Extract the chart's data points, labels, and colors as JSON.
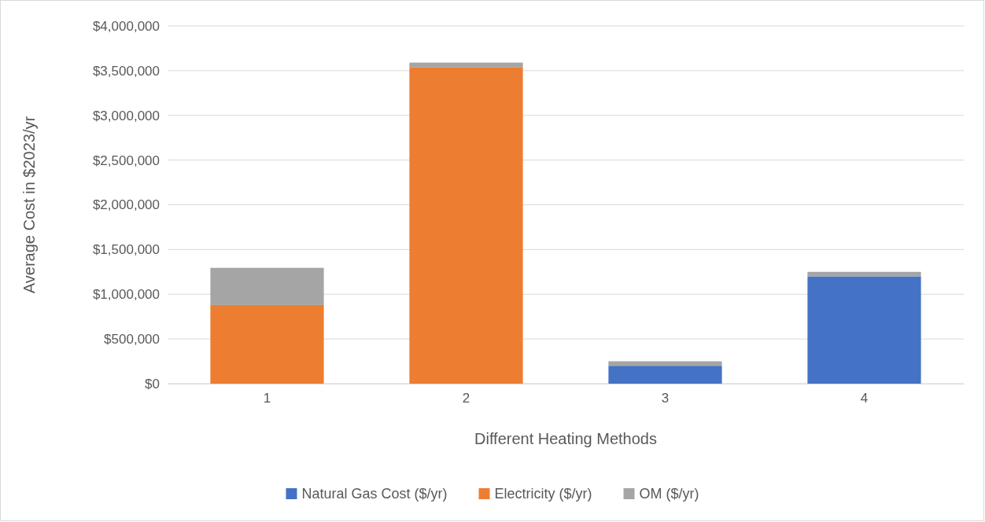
{
  "chart_data": {
    "type": "bar",
    "stacked": true,
    "xlabel": "Different Heating Methods",
    "ylabel": "Average Cost in $2023/yr",
    "categories": [
      "1",
      "2",
      "3",
      "4"
    ],
    "series": [
      {
        "name": "Natural Gas Cost ($/yr)",
        "color": "#4472c4",
        "values": [
          0,
          0,
          200000,
          1200000
        ]
      },
      {
        "name": "Electricity ($/yr)",
        "color": "#ed7d31",
        "values": [
          880000,
          3540000,
          0,
          0
        ]
      },
      {
        "name": "OM  ($/yr)",
        "color": "#a5a5a5",
        "values": [
          415000,
          50000,
          50000,
          50000
        ]
      }
    ],
    "ylim": [
      0,
      4000000
    ],
    "yticks": [
      {
        "value": 0,
        "label": "$0"
      },
      {
        "value": 500000,
        "label": "$500,000"
      },
      {
        "value": 1000000,
        "label": "$1,000,000"
      },
      {
        "value": 1500000,
        "label": "$1,500,000"
      },
      {
        "value": 2000000,
        "label": "$2,000,000"
      },
      {
        "value": 2500000,
        "label": "$2,500,000"
      },
      {
        "value": 3000000,
        "label": "$3,000,000"
      },
      {
        "value": 3500000,
        "label": "$3,500,000"
      },
      {
        "value": 4000000,
        "label": "$4,000,000"
      }
    ],
    "grid": "y",
    "legend": "bottom"
  }
}
